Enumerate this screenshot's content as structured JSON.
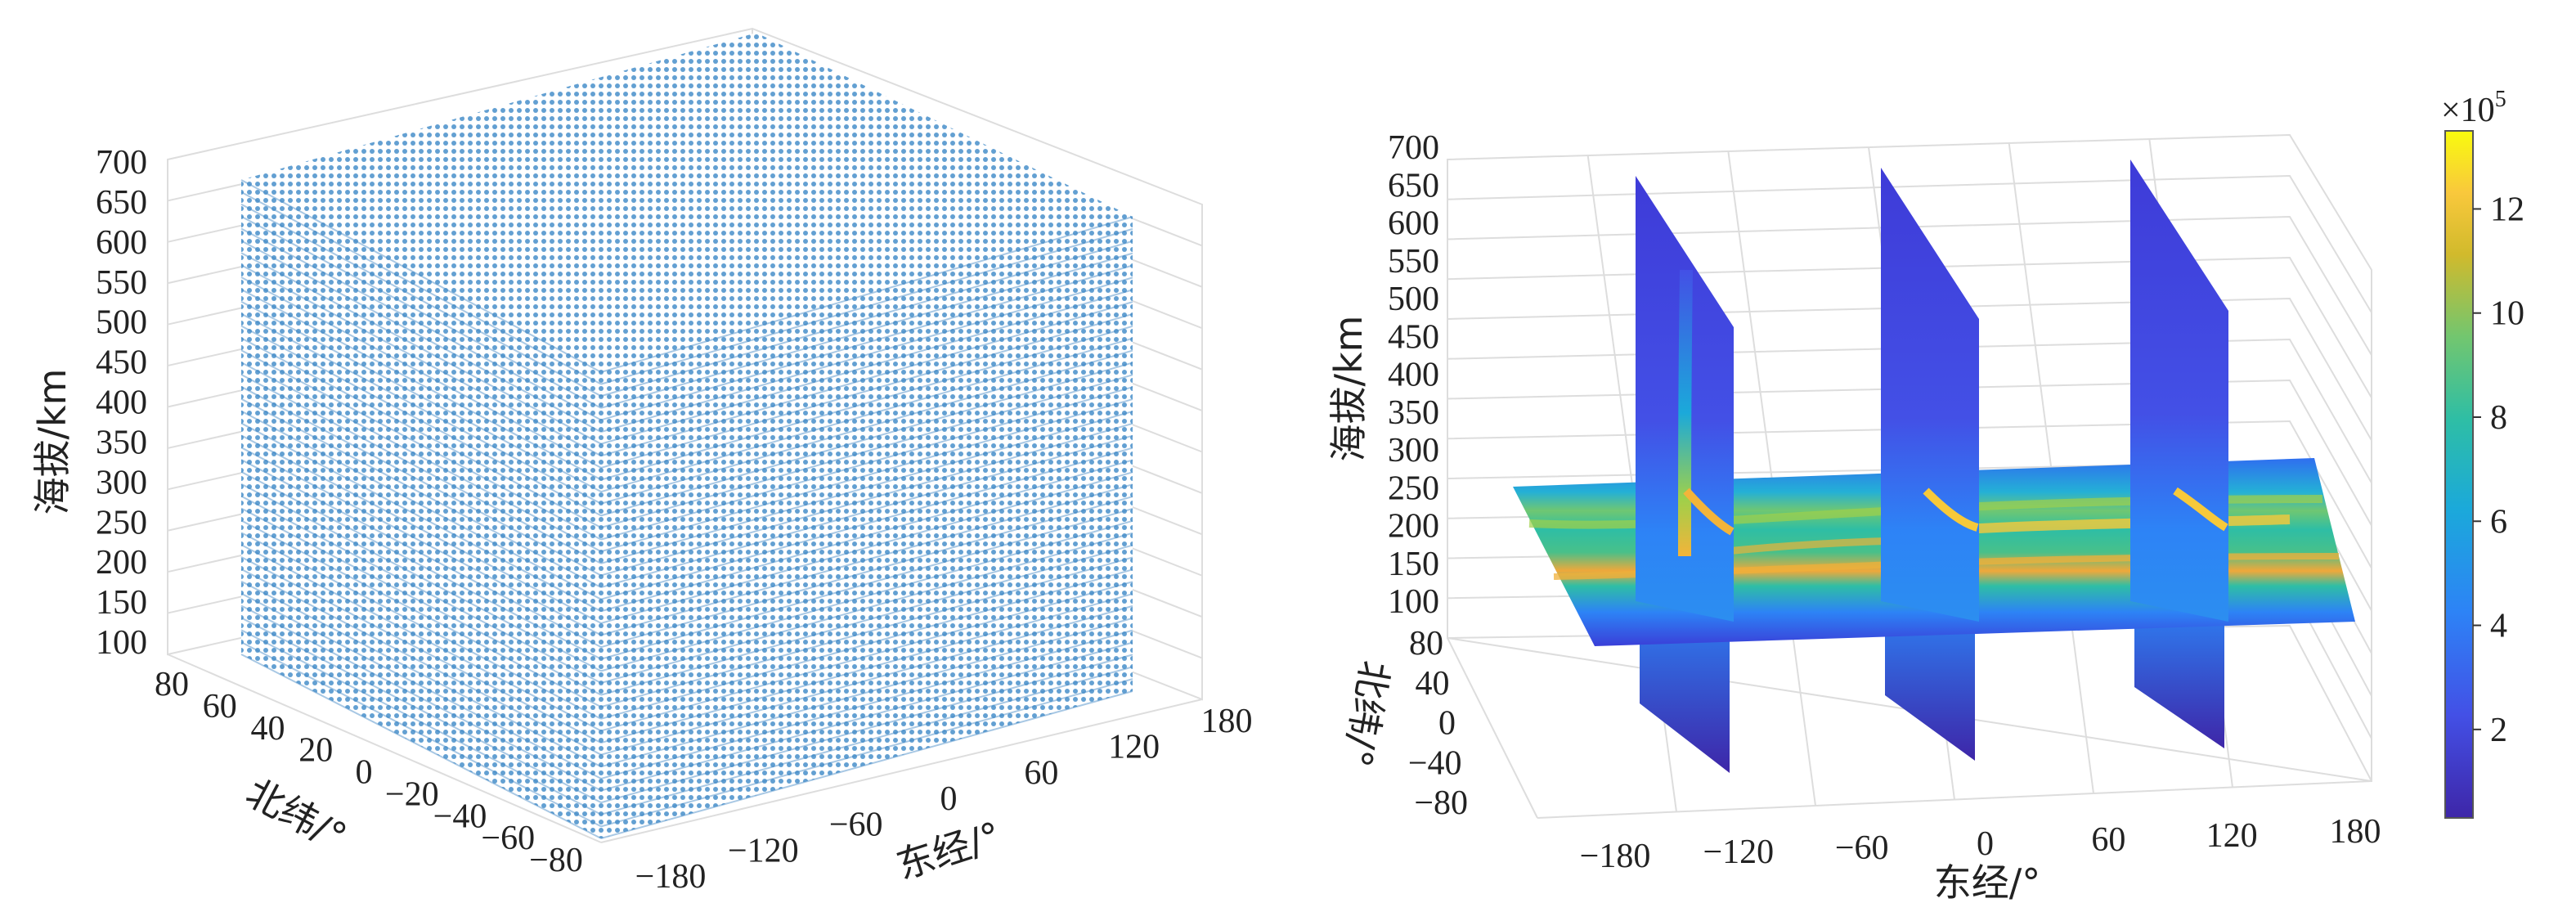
{
  "chart_data": [
    {
      "type": "scatter",
      "marker_color": "#4a90c8",
      "grid": true,
      "xlabel": "东经/°",
      "ylabel": "北纬/°",
      "zlabel": "海拔/km",
      "x_ticks": [
        "−180",
        "−120",
        "−60",
        "0",
        "60",
        "120",
        "180"
      ],
      "y_ticks": [
        "80",
        "60",
        "40",
        "20",
        "0",
        "−20",
        "−40",
        "−60",
        "−80"
      ],
      "z_ticks": [
        "700",
        "650",
        "600",
        "550",
        "500",
        "450",
        "400",
        "350",
        "300",
        "250",
        "200",
        "150",
        "100"
      ],
      "xlim": [
        -180,
        180
      ],
      "ylim": [
        -90,
        90
      ],
      "zlim": [
        100,
        700
      ]
    },
    {
      "type": "heatmap",
      "colormap": "parula",
      "grid": true,
      "xlabel": "东经/°",
      "ylabel": "北纬/°",
      "zlabel": "海拔/km",
      "x_ticks": [
        "−180",
        "−120",
        "−60",
        "0",
        "60",
        "120",
        "180"
      ],
      "y_ticks": [
        "80",
        "40",
        "0",
        "−40",
        "−80"
      ],
      "z_ticks": [
        "700",
        "650",
        "600",
        "550",
        "500",
        "450",
        "400",
        "350",
        "300",
        "250",
        "200",
        "150",
        "100"
      ],
      "xlim": [
        -180,
        180
      ],
      "ylim": [
        -90,
        90
      ],
      "zlim": [
        100,
        700
      ],
      "colorbar_exponent": "×10",
      "colorbar_exponent_power": "5",
      "colorbar_ticks": [
        "12",
        "10",
        "8",
        "6",
        "4",
        "2"
      ],
      "colorbar_range": [
        0.3,
        13.5
      ],
      "slice_longitudes": [
        -120,
        0,
        120
      ],
      "slice_altitude_km": 200
    }
  ]
}
